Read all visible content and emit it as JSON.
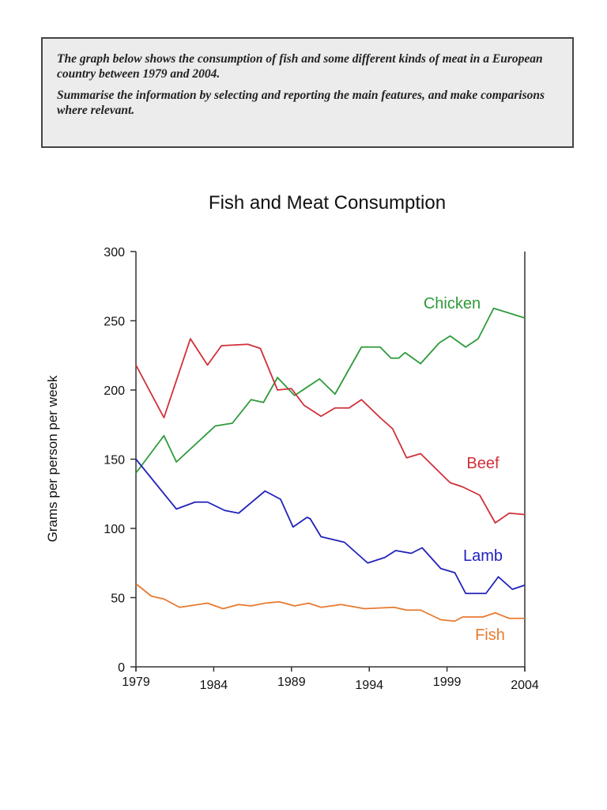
{
  "task": {
    "paragraph_1": "The graph below shows the consumption of fish and some different kinds of meat in a European country between 1979 and 2004.",
    "paragraph_2": "Summarise the information by selecting and reporting the main features, and make comparisons where relevant."
  },
  "chart_data": {
    "type": "line",
    "title": "Fish and Meat Consumption",
    "xlabel": "",
    "ylabel": "Grams per person per week",
    "xlim": [
      1979,
      2004
    ],
    "ylim": [
      0,
      300
    ],
    "xticks": [
      "1979",
      "1984",
      "1989",
      "1994",
      "1999",
      "2004"
    ],
    "yticks": [
      "0",
      "50",
      "100",
      "150",
      "200",
      "250",
      "300"
    ],
    "grid": false,
    "series": [
      {
        "name": "Chicken",
        "color": "#2e9a3a",
        "x": [
          1979,
          1980.8,
          1981.6,
          1984.1,
          1985.2,
          1986.4,
          1987.2,
          1988.1,
          1989.2,
          1990.8,
          1991.8,
          1993.5,
          1994.7,
          1995.4,
          1995.9,
          1996.3,
          1997.3,
          1998.5,
          1999.2,
          2000.2,
          2001.0,
          2002.0,
          2004
        ],
        "y": [
          140,
          167,
          148,
          174,
          176,
          193,
          191,
          209,
          196,
          208,
          197,
          231,
          231,
          223,
          223,
          227,
          219,
          234,
          239,
          231,
          237,
          259,
          252
        ]
      },
      {
        "name": "Beef",
        "color": "#d0303a",
        "x": [
          1979,
          1980.8,
          1982.5,
          1983.6,
          1984.5,
          1986.2,
          1987.0,
          1988.1,
          1989.0,
          1989.8,
          1990.9,
          1991.8,
          1992.7,
          1993.5,
          1994.7,
          1995.5,
          1996.4,
          1997.3,
          1999.2,
          2000.0,
          2001.1,
          2002.1,
          2003.0,
          2004
        ],
        "y": [
          218,
          180,
          237,
          218,
          232,
          233,
          230,
          200,
          201,
          189,
          181,
          187,
          187,
          193,
          180,
          172,
          151,
          154,
          133,
          130,
          124,
          104,
          111,
          110
        ]
      },
      {
        "name": "Lamb",
        "color": "#2222bb",
        "x": [
          1979,
          1981.6,
          1982.8,
          1983.6,
          1984.7,
          1985.6,
          1987.3,
          1988.3,
          1989.1,
          1990.0,
          1990.2,
          1990.9,
          1992.4,
          1993.9,
          1995.0,
          1995.7,
          1996.7,
          1997.4,
          1998.6,
          1999.5,
          2000.2,
          2001.5,
          2002.3,
          2003.2,
          2004
        ],
        "y": [
          150,
          114,
          119,
          119,
          113,
          111,
          127,
          121,
          101,
          108,
          107,
          94,
          90,
          75,
          79,
          84,
          82,
          86,
          71,
          68,
          53,
          53,
          65,
          56,
          59
        ]
      },
      {
        "name": "Fish",
        "color": "#e87a30",
        "x": [
          1979,
          1980.0,
          1980.8,
          1981.8,
          1983.6,
          1984.6,
          1985.6,
          1986.4,
          1987.3,
          1988.2,
          1989.2,
          1990.1,
          1990.9,
          1992.2,
          1993.7,
          1995.6,
          1996.4,
          1997.3,
          1998.6,
          1999.5,
          2000.0,
          2001.3,
          2002.1,
          2003.0,
          2004
        ],
        "y": [
          60,
          51,
          49,
          43,
          46,
          42,
          45,
          44,
          46,
          47,
          44,
          46,
          43,
          45,
          42,
          43,
          41,
          41,
          34,
          33,
          36,
          36,
          39,
          35,
          35
        ]
      }
    ]
  }
}
